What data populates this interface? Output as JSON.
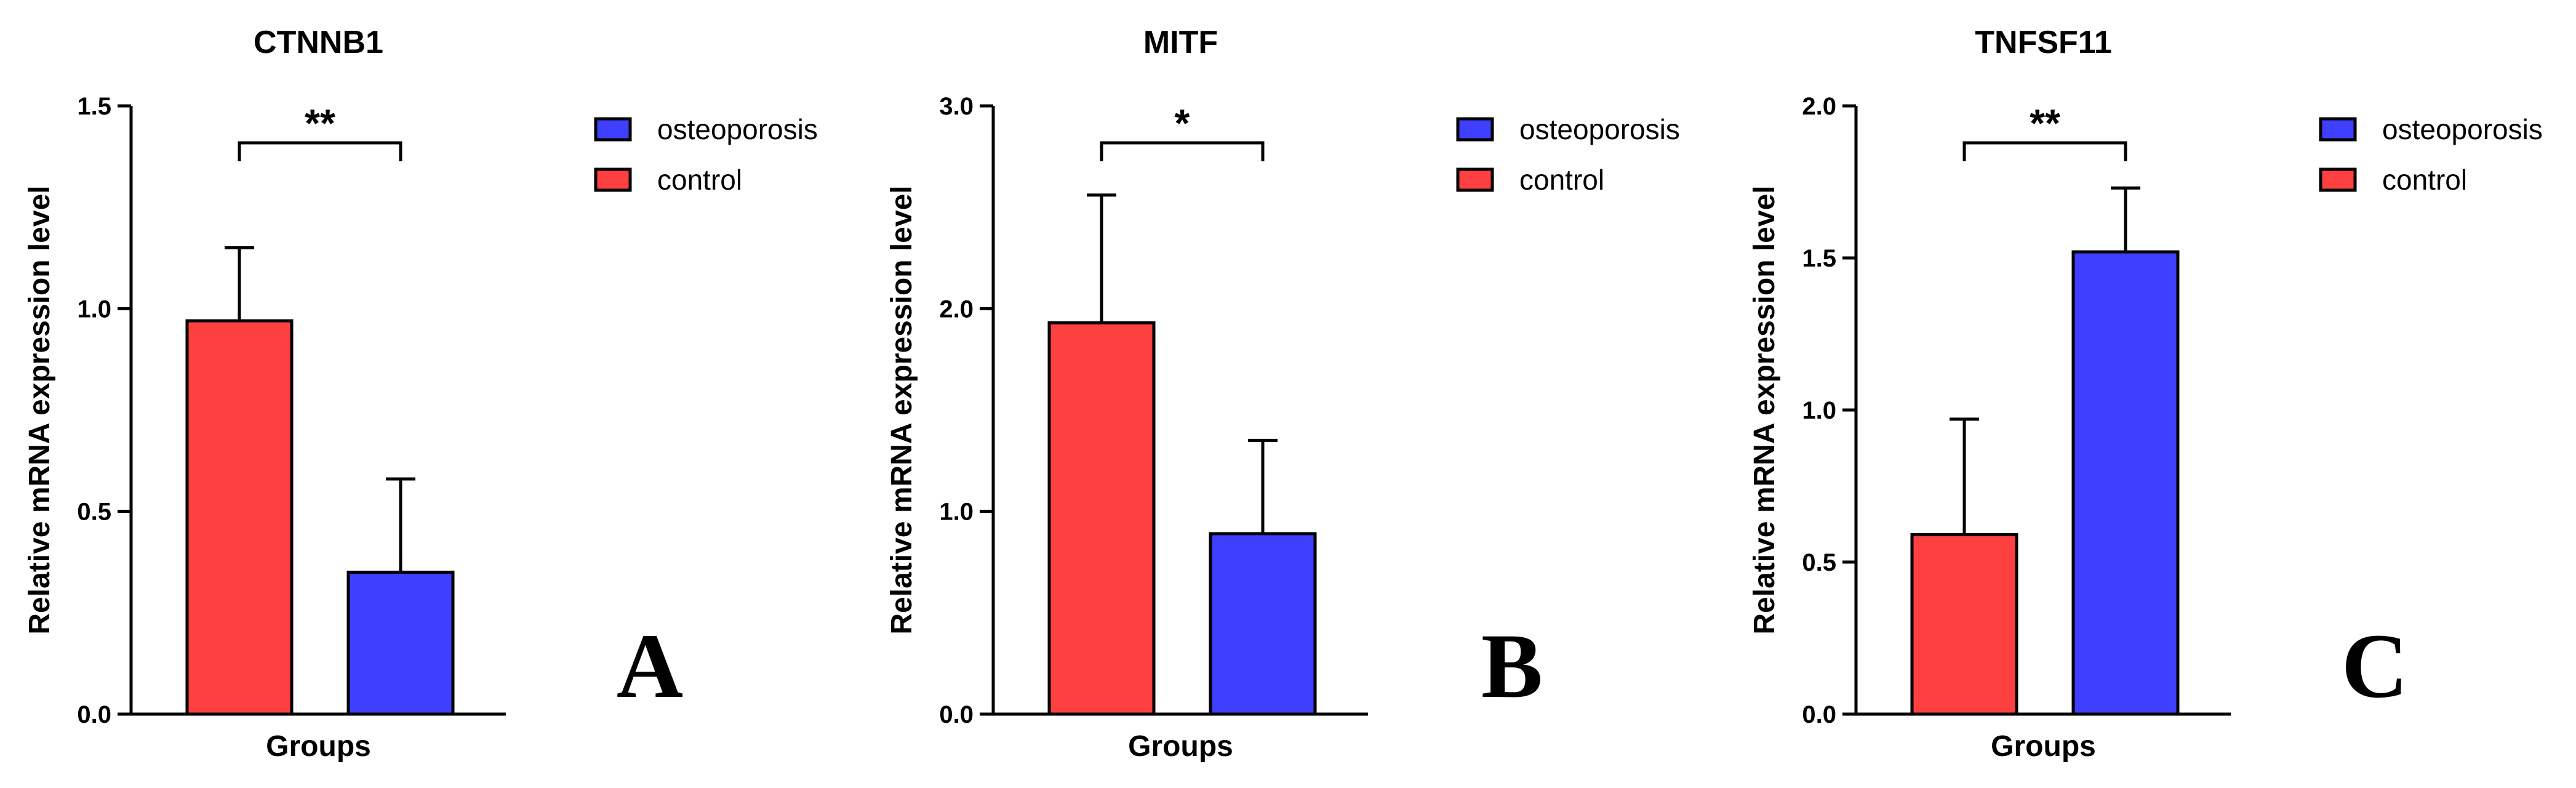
{
  "figure_labels": {
    "panel_letters": [
      "A",
      "B",
      "C"
    ]
  },
  "legend": {
    "items": [
      {
        "label": "osteoporosis",
        "color": "#3f3fff"
      },
      {
        "label": "control",
        "color": "#ff4040"
      }
    ]
  },
  "chart_data": [
    {
      "type": "bar",
      "title": "CTNNB1",
      "xlabel": "Groups",
      "ylabel": "Relative mRNA expression level",
      "ylim": [
        0,
        1.5
      ],
      "yticks": [
        "0.0",
        "0.5",
        "1.0",
        "1.5"
      ],
      "ytick_values": [
        0,
        0.5,
        1.0,
        1.5
      ],
      "series": [
        {
          "name": "control",
          "value": 0.97,
          "error": 0.18,
          "color": "#ff4040"
        },
        {
          "name": "osteoporosis",
          "value": 0.35,
          "error": 0.23,
          "color": "#3f3fff"
        }
      ],
      "significance": "**",
      "panel": "A"
    },
    {
      "type": "bar",
      "title": "MITF",
      "xlabel": "Groups",
      "ylabel": "Relative mRNA expression level",
      "ylim": [
        0,
        3.0
      ],
      "yticks": [
        "0.0",
        "1.0",
        "2.0",
        "3.0"
      ],
      "ytick_values": [
        0,
        1.0,
        2.0,
        3.0
      ],
      "series": [
        {
          "name": "control",
          "value": 1.93,
          "error": 0.63,
          "color": "#ff4040"
        },
        {
          "name": "osteoporosis",
          "value": 0.89,
          "error": 0.46,
          "color": "#3f3fff"
        }
      ],
      "significance": "*",
      "panel": "B"
    },
    {
      "type": "bar",
      "title": "TNFSF11",
      "xlabel": "Groups",
      "ylabel": "Relative mRNA expression level",
      "ylim": [
        0,
        2.0
      ],
      "yticks": [
        "0.0",
        "0.5",
        "1.0",
        "1.5",
        "2.0"
      ],
      "ytick_values": [
        0,
        0.5,
        1.0,
        1.5,
        2.0
      ],
      "series": [
        {
          "name": "control",
          "value": 0.59,
          "error": 0.38,
          "color": "#ff4040"
        },
        {
          "name": "osteoporosis",
          "value": 1.52,
          "error": 0.21,
          "color": "#3f3fff"
        }
      ],
      "significance": "**",
      "panel": "C"
    }
  ]
}
